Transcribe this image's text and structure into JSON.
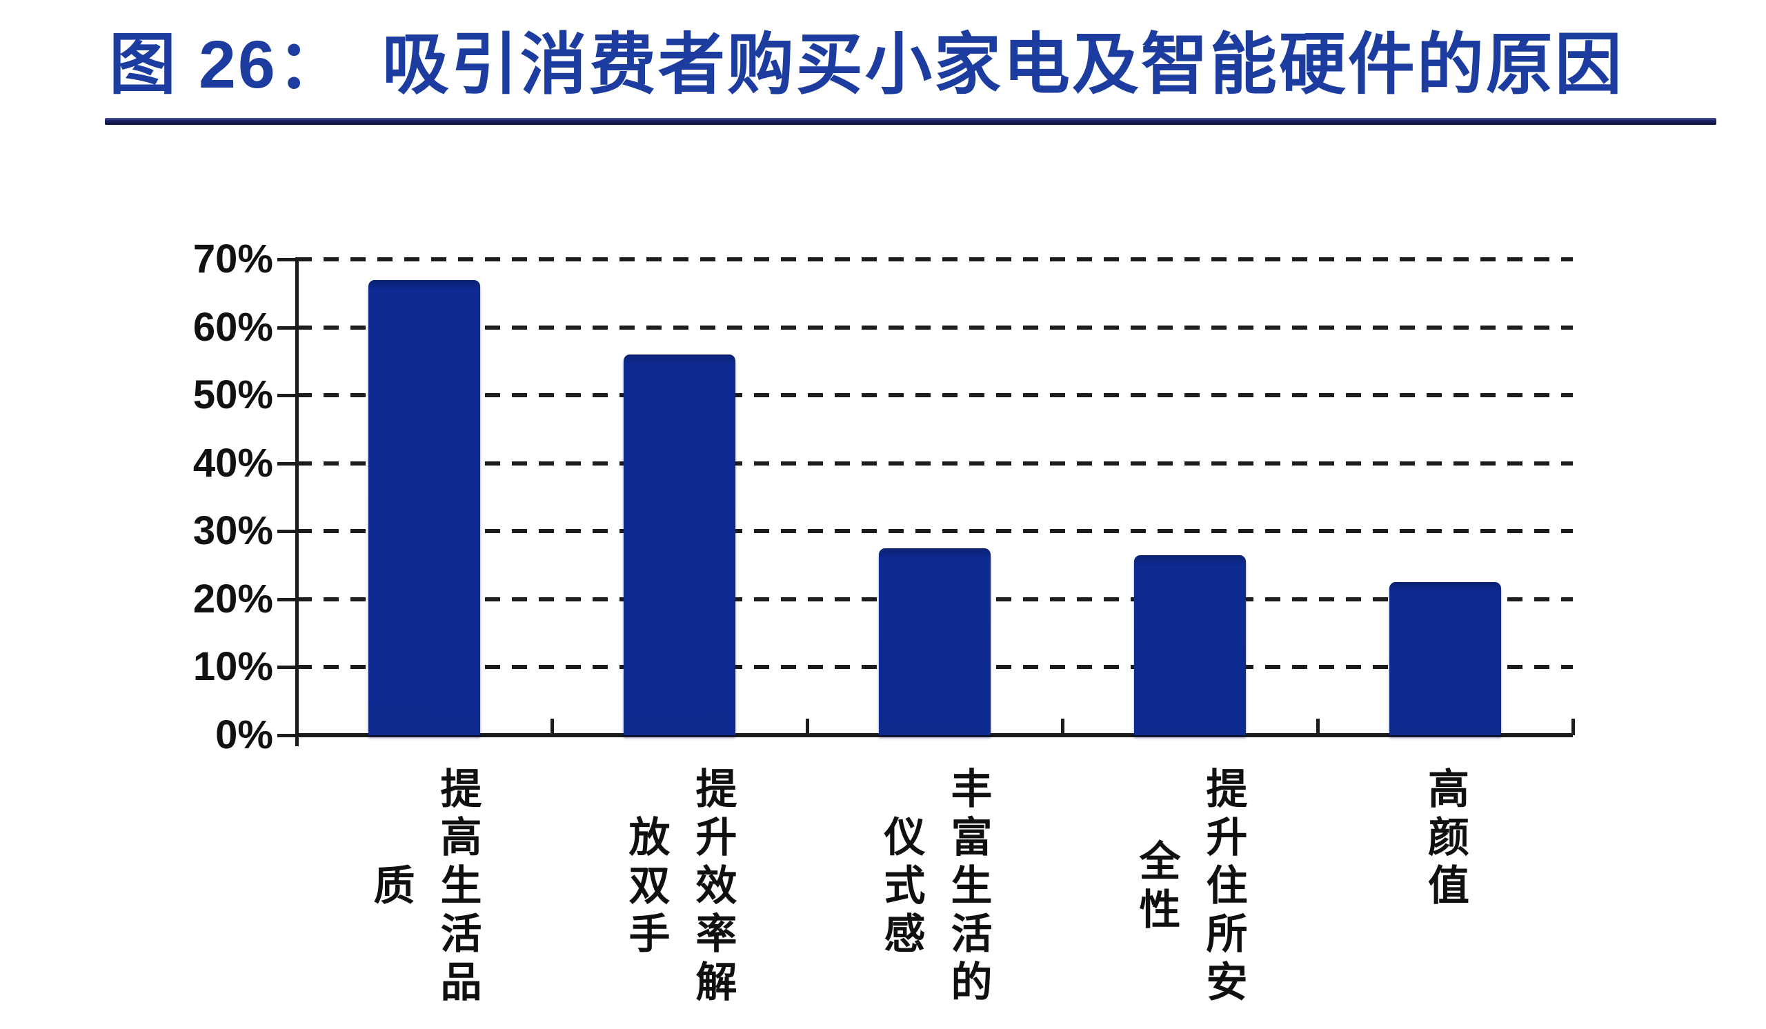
{
  "figure": {
    "number_label": "图 26：",
    "title": "吸引消费者购买小家电及智能硬件的原因"
  },
  "chart_data": {
    "type": "bar",
    "title": "图 26：吸引消费者购买小家电及智能硬件的原因",
    "categories": [
      "提高生活品质",
      "提升效率解放双手",
      "丰富生活的仪式感",
      "提升住所安全性",
      "高颜值"
    ],
    "category_display_columns": [
      [
        "提高生活品",
        "质"
      ],
      [
        "提升效率解",
        "放双手"
      ],
      [
        "丰富生活的",
        "仪式感"
      ],
      [
        "提升住所安",
        "全性"
      ],
      [
        "高颜值"
      ]
    ],
    "values": [
      67,
      56,
      27.5,
      26.5,
      22.5
    ],
    "value_unit": "%",
    "xlabel": "",
    "ylabel": "",
    "ylim": [
      0,
      70
    ],
    "ytick_interval": 10,
    "ytick_labels": [
      "0%",
      "10%",
      "20%",
      "30%",
      "40%",
      "50%",
      "60%",
      "70%"
    ],
    "grid": "horizontal-dashed",
    "legend": "none",
    "data_labels": "none",
    "colors": {
      "bar": "#0d2a91",
      "bar_top_shade": "#0a2173",
      "axis": "#1c1c1c",
      "tick_label": "#111111",
      "title": "#1c3ca0",
      "underline_light": "#47519f",
      "underline_dark": "#0c0f38",
      "background": "#ffffff"
    }
  }
}
